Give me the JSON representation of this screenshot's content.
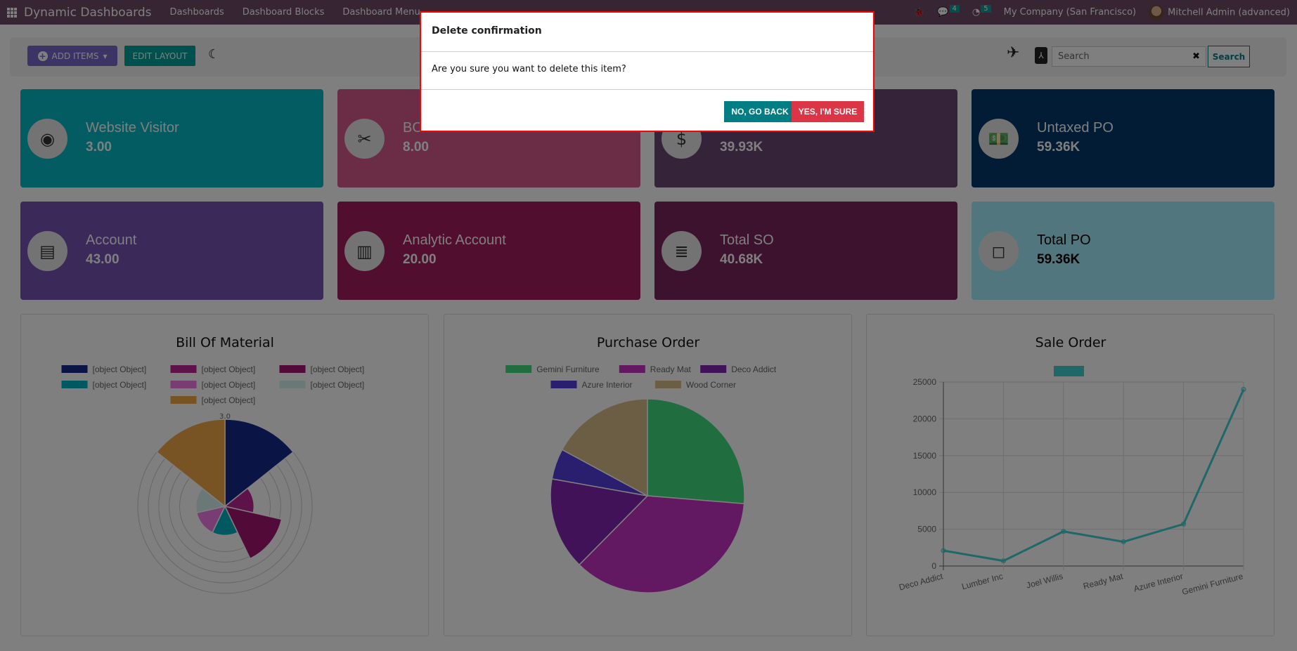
{
  "navbar": {
    "brand": "Dynamic Dashboards",
    "menus": [
      "Dashboards",
      "Dashboard Blocks",
      "Dashboard Menu"
    ],
    "messages_count": "4",
    "activities_count": "5",
    "company": "My Company (San Francisco)",
    "user": "Mitchell Admin (advanced)"
  },
  "toolbar": {
    "add_items": "ADD ITEMS",
    "edit_layout": "EDIT LAYOUT",
    "search_placeholder": "Search",
    "search_button": "Search"
  },
  "cards": [
    {
      "title": "Website Visitor",
      "value": "3.00",
      "color": "#05b8c4",
      "icon": "eye-icon"
    },
    {
      "title": "BO",
      "value": "8.00",
      "color": "#d65a8a",
      "icon": "tools-icon"
    },
    {
      "title": "",
      "value": "39.93K",
      "color": "#6a4674",
      "icon": "dollar-coin-icon"
    },
    {
      "title": "Untaxed PO",
      "value": "59.36K",
      "color": "#023868",
      "icon": "money-icon"
    },
    {
      "title": "Account",
      "value": "43.00",
      "color": "#7652b4",
      "icon": "id-card-icon"
    },
    {
      "title": "Analytic Account",
      "value": "20.00",
      "color": "#a41c5c",
      "icon": "bar-chart-icon"
    },
    {
      "title": "Total SO",
      "value": "40.68K",
      "color": "#78245c",
      "icon": "receipt-icon"
    },
    {
      "title": "Total PO",
      "value": "59.36K",
      "color": "#a4ecfc",
      "icon": "shopping-bag-icon"
    }
  ],
  "dialog": {
    "title": "Delete confirmation",
    "message": "Are you sure you want to delete this item?",
    "no": "NO, GO BACK",
    "yes": "YES, I'M SURE"
  },
  "chart_data": [
    {
      "type": "polarArea",
      "title": "Bill Of Material",
      "labels": [
        "[object Object]",
        "[object Object]",
        "[object Object]",
        "[object Object]",
        "[object Object]",
        "[object Object]",
        "[object Object]"
      ],
      "values": [
        3,
        1,
        2,
        1,
        1,
        1,
        3
      ],
      "colors": [
        "#14288a",
        "#bc2494",
        "#a41470",
        "#00b0c0",
        "#f07ce8",
        "#d4f0f0",
        "#f0a848"
      ],
      "rmax": 3.0,
      "tick_label": "3.0",
      "legend": "top"
    },
    {
      "type": "pie",
      "title": "Purchase Order",
      "labels": [
        "Gemini Furniture",
        "Ready Mat",
        "Deco Addict",
        "Azure Interior",
        "Wood Corner"
      ],
      "values": [
        26.3,
        36.1,
        15.4,
        5.1,
        17.1
      ],
      "colors": [
        "#40dc80",
        "#c632c2",
        "#8424b0",
        "#543cdc",
        "#d8bc88"
      ],
      "legend": "top"
    },
    {
      "type": "line",
      "title": "Sale Order",
      "categories": [
        "Deco Addict",
        "Lumber Inc",
        "Joel Willis",
        "Ready Mat",
        "Azure Interior",
        "Gemini Furniture"
      ],
      "values": [
        2100,
        700,
        4700,
        3300,
        5700,
        24000
      ],
      "ylim": [
        0,
        25000
      ],
      "yticks": [
        "0",
        "5000",
        "10000",
        "15000",
        "20000",
        "25000"
      ],
      "color": "#40d0d0",
      "grid": true,
      "legend": "top"
    }
  ]
}
